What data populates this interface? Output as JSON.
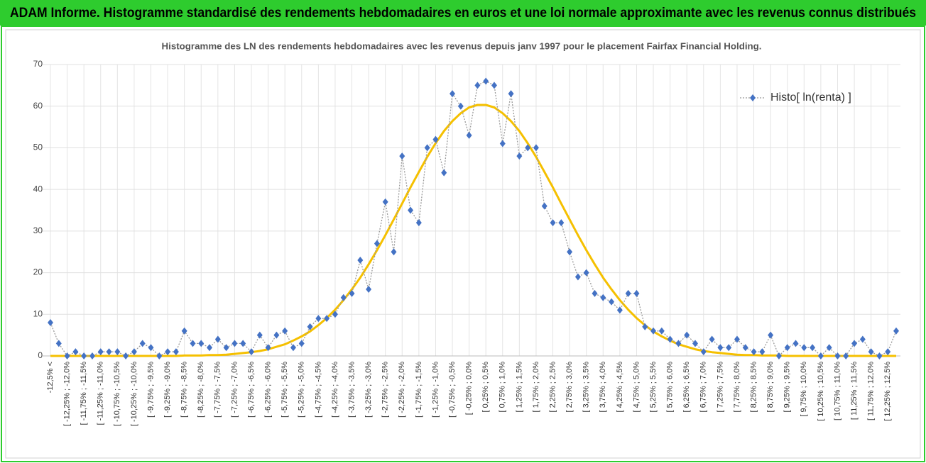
{
  "header": {
    "title": "ADAM Informe. Histogramme standardisé des rendements hebdomadaires en euros et une loi normale approximante avec les revenus connus distribués"
  },
  "chart_data": {
    "type": "line",
    "title": "Histogramme des LN des rendements hebdomadaires avec les revenus depuis janv 1997 pour le placement Fairfax Financial Holding.",
    "categories": [
      "-12,5% <",
      null,
      "[ -12,25% ; -12,0%",
      null,
      "[ -11,75% ; -11,5%",
      null,
      "[ -11,25% ; -11,0%",
      null,
      "[ -10,75% ; -10,5%",
      null,
      "[ -10,25% ; -10,0%",
      null,
      "[ -9,75% ; -9,5%",
      null,
      "[ -9,25% ; -9,0%",
      null,
      "[ -8,75% ; -8,5%",
      null,
      "[ -8,25% ; -8,0%",
      null,
      "[ -7,75% ; -7,5%",
      null,
      "[ -7,25% ; -7,0%",
      null,
      "[ -6,75% ; -6,5%",
      null,
      "[ -6,25% ; -6,0%",
      null,
      "[ -5,75% ; -5,5%",
      null,
      "[ -5,25% ; -5,0%",
      null,
      "[ -4,75% ; -4,5%",
      null,
      "[ -4,25% ; -4,0%",
      null,
      "[ -3,75% ; -3,5%",
      null,
      "[ -3,25% ; -3,0%",
      null,
      "[ -2,75% ; -2,5%",
      null,
      "[ -2,25% ; -2,0%",
      null,
      "[ -1,75% ; -1,5%",
      null,
      "[ -1,25% ; -1,0%",
      null,
      "[ -0,75% ; -0,5%",
      null,
      "[ -0,25% ; 0,0%",
      null,
      "[ 0,25% ; 0,5%",
      null,
      "[ 0,75% ; 1,0%",
      null,
      "[ 1,25% ; 1,5%",
      null,
      "[ 1,75% ; 2,0%",
      null,
      "[ 2,25% ; 2,5%",
      null,
      "[ 2,75% ; 3,0%",
      null,
      "[ 3,25% ; 3,5%",
      null,
      "[ 3,75% ; 4,0%",
      null,
      "[ 4,25% ; 4,5%",
      null,
      "[ 4,75% ; 5,0%",
      null,
      "[ 5,25% ; 5,5%",
      null,
      "[ 5,75% ; 6,0%",
      null,
      "[ 6,25% ; 6,5%",
      null,
      "[ 6,75% ; 7,0%",
      null,
      "[ 7,25% ; 7,5%",
      null,
      "[ 7,75% ; 8,0%",
      null,
      "[ 8,25% ; 8,5%",
      null,
      "[ 8,75% ; 9,0%",
      null,
      "[ 9,25% ; 9,5%",
      null,
      "[ 9,75% ; 10,0%",
      null,
      "[ 10,25% ; 10,5%",
      null,
      "[ 10,75% ; 11,0%",
      null,
      "[ 11,25% ; 11,5%",
      null,
      "[ 11,75% ; 12,0%",
      null,
      "[ 12,25% ; 12,5%",
      null
    ],
    "series": [
      {
        "name": "Histo[ ln(renta) ]",
        "color": "#4472c4",
        "values": [
          8,
          3,
          0,
          1,
          0,
          0,
          1,
          1,
          1,
          0,
          1,
          3,
          2,
          0,
          1,
          1,
          6,
          3,
          3,
          2,
          4,
          2,
          3,
          3,
          1,
          5,
          2,
          5,
          6,
          2,
          3,
          7,
          9,
          9,
          10,
          14,
          15,
          23,
          16,
          27,
          37,
          25,
          48,
          35,
          32,
          50,
          52,
          44,
          63,
          60,
          53,
          65,
          66,
          65,
          51,
          63,
          48,
          50,
          50,
          36,
          32,
          32,
          25,
          19,
          20,
          15,
          14,
          13,
          11,
          15,
          15,
          7,
          6,
          6,
          4,
          3,
          5,
          3,
          1,
          4,
          2,
          2,
          4,
          2,
          1,
          1,
          5,
          0,
          2,
          3,
          2,
          2,
          0,
          2,
          0,
          0,
          3,
          4,
          1,
          0,
          1,
          6
        ]
      },
      {
        "color": "#f5c000",
        "values": [
          0,
          0,
          0,
          0,
          0,
          0,
          0,
          0,
          0,
          0,
          0,
          0,
          0,
          0,
          0,
          0,
          0.1,
          0.1,
          0.1,
          0.2,
          0.2,
          0.3,
          0.5,
          0.7,
          0.9,
          1.2,
          1.6,
          2.2,
          2.8,
          3.7,
          4.7,
          5.9,
          7.4,
          9.1,
          11.1,
          13.4,
          16.0,
          18.8,
          22.0,
          25.4,
          29.0,
          32.8,
          36.6,
          40.5,
          44.2,
          47.8,
          51.1,
          54.0,
          56.4,
          58.3,
          59.7,
          60.3,
          60.3,
          59.7,
          58.3,
          56.4,
          54.0,
          51.1,
          47.8,
          44.2,
          40.5,
          36.6,
          32.8,
          29.0,
          25.4,
          22.0,
          18.8,
          16.0,
          13.4,
          11.1,
          9.1,
          7.4,
          5.9,
          4.7,
          3.7,
          2.8,
          2.2,
          1.6,
          1.2,
          0.9,
          0.7,
          0.5,
          0.3,
          0.2,
          0.2,
          0.1,
          0.1,
          0.1,
          0,
          0,
          0,
          0,
          0,
          0,
          0,
          0,
          0,
          0,
          0,
          0,
          0,
          0
        ]
      }
    ],
    "ylim": [
      0,
      70
    ],
    "yticks": [
      0,
      10,
      20,
      30,
      40,
      50,
      60,
      70
    ],
    "grid": true,
    "legend": "upper right"
  }
}
